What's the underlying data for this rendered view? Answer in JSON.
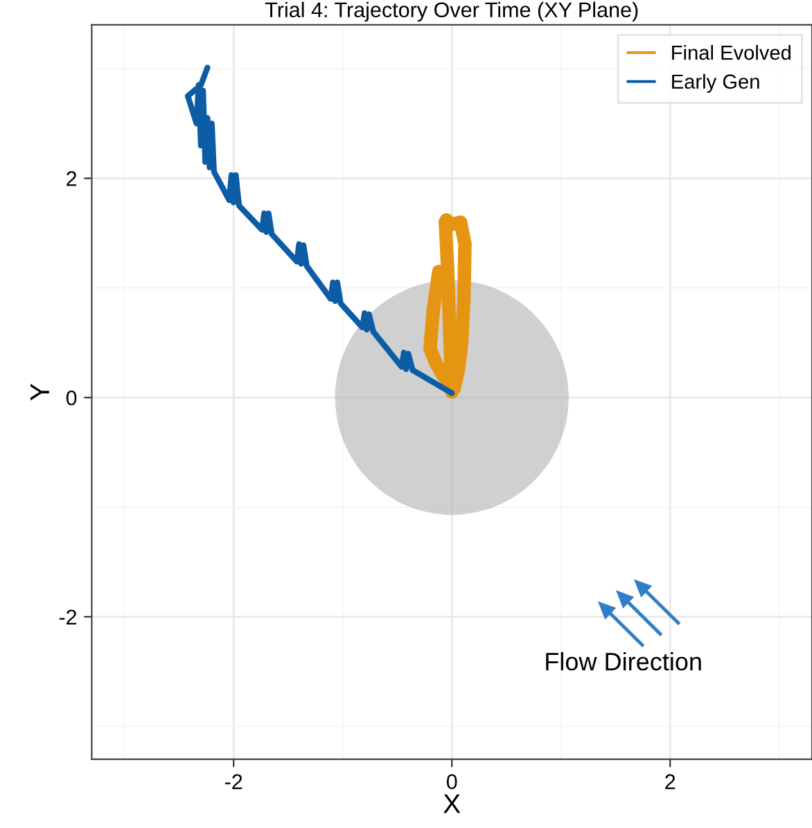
{
  "chart_data": {
    "type": "line",
    "title": "Trial 4: Trajectory Over Time (XY Plane)",
    "xlabel": "X",
    "ylabel": "Y",
    "xlim": [
      -3.3,
      3.3
    ],
    "ylim": [
      -3.3,
      3.4
    ],
    "xticks": [
      -2,
      0,
      2
    ],
    "yticks": [
      -2,
      0,
      2
    ],
    "grid": true,
    "legend": "top right",
    "annotations": [
      "Flow Direction"
    ],
    "series": [
      {
        "name": "Final Evolved",
        "color": "#e69512",
        "x": [
          0.0,
          -0.02,
          -0.04,
          -0.06,
          -0.05,
          0.0,
          0.08,
          0.12,
          0.11,
          0.09,
          0.06,
          0.02,
          -0.08,
          -0.15,
          -0.2,
          -0.17,
          -0.12
        ],
        "values": [
          0.05,
          0.6,
          1.2,
          1.6,
          1.62,
          1.58,
          1.6,
          1.4,
          0.9,
          0.5,
          0.25,
          0.08,
          0.2,
          0.32,
          0.45,
          0.8,
          1.15
        ]
      },
      {
        "name": "Early Gen",
        "color": "#0d5ca6",
        "x": [
          0.0,
          -0.36,
          -0.4,
          -0.42,
          -0.44,
          -0.46,
          -0.72,
          -0.76,
          -0.78,
          -0.8,
          -0.82,
          -1.02,
          -1.05,
          -1.07,
          -1.09,
          -1.11,
          -1.33,
          -1.36,
          -1.38,
          -1.4,
          -1.42,
          -1.65,
          -1.68,
          -1.7,
          -1.72,
          -1.74,
          -1.95,
          -1.98,
          -2.0,
          -2.02,
          -2.04,
          -2.18,
          -2.2,
          -2.22,
          -2.24,
          -2.26,
          -2.28,
          -2.3,
          -2.32,
          -2.34,
          -2.42,
          -2.3,
          -2.24
        ],
        "values": [
          0.04,
          0.25,
          0.4,
          0.26,
          0.41,
          0.28,
          0.6,
          0.76,
          0.62,
          0.77,
          0.64,
          0.86,
          1.05,
          0.88,
          1.05,
          0.9,
          1.2,
          1.39,
          1.22,
          1.4,
          1.24,
          1.49,
          1.68,
          1.51,
          1.68,
          1.53,
          1.75,
          2.03,
          1.78,
          2.03,
          1.8,
          2.06,
          2.5,
          2.1,
          2.55,
          2.15,
          2.8,
          2.3,
          2.85,
          2.5,
          2.75,
          2.85,
          3.01
        ]
      }
    ]
  }
}
